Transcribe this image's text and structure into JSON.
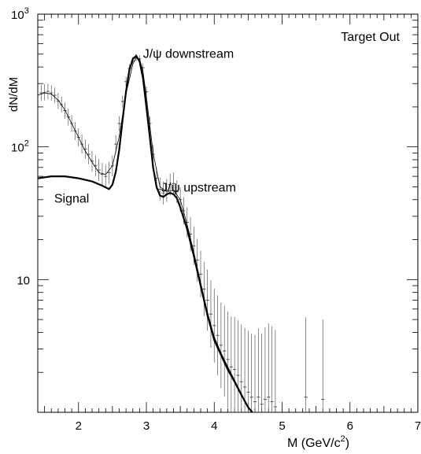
{
  "chart_data": {
    "type": "line",
    "title": "",
    "xlabel": "M (GeV/c",
    "xlabel_sup": "2",
    "xlabel_close": ")",
    "ylabel": "dN/dM",
    "xlim": [
      1.4,
      7.0
    ],
    "ylim": [
      1,
      1000
    ],
    "yscale": "log",
    "grid": false,
    "x_ticks": [
      {
        "value": 2,
        "label": "2"
      },
      {
        "value": 3,
        "label": "3"
      },
      {
        "value": 4,
        "label": "4"
      },
      {
        "value": 5,
        "label": "5"
      },
      {
        "value": 6,
        "label": "6"
      },
      {
        "value": 7,
        "label": "7"
      }
    ],
    "y_ticks": [
      {
        "value": 10,
        "label": "10"
      },
      {
        "value": 100,
        "label": "10",
        "sup": "2"
      },
      {
        "value": 1000,
        "label": "10",
        "sup": "3"
      }
    ],
    "annotations": [
      {
        "text": "Target Out",
        "x": 6.3,
        "y": 630
      },
      {
        "text": "J/ψ downstream",
        "x": 3.62,
        "y": 470
      },
      {
        "text": "J/ψ upstream",
        "x": 3.77,
        "y": 46
      },
      {
        "text": "Signal",
        "x": 1.9,
        "y": 38
      }
    ],
    "series": [
      {
        "kind": "signal_curve",
        "x": [
          1.4,
          1.6,
          1.8,
          2.0,
          2.2,
          2.35,
          2.45,
          2.5,
          2.55,
          2.6,
          2.65,
          2.7,
          2.75,
          2.8,
          2.85,
          2.9,
          2.95,
          3.0,
          3.05,
          3.1,
          3.15,
          3.2,
          3.25,
          3.3,
          3.35,
          3.4,
          3.45,
          3.5,
          3.6,
          3.7,
          3.8,
          3.9,
          4.0,
          4.1,
          4.2,
          4.3,
          4.4,
          4.5,
          4.56
        ],
        "y": [
          58,
          60,
          60,
          58,
          55,
          51,
          48,
          52,
          65,
          95,
          160,
          260,
          380,
          460,
          485,
          440,
          330,
          200,
          120,
          70,
          50,
          43,
          42,
          44,
          45,
          44,
          41,
          35,
          24,
          15,
          9,
          5.4,
          3.5,
          2.7,
          2.1,
          1.7,
          1.35,
          1.09,
          1.0
        ]
      },
      {
        "kind": "background_fit",
        "x": [
          1.4,
          1.5,
          1.6,
          1.7,
          1.8,
          1.9,
          2.0,
          2.1,
          2.2,
          2.3,
          2.4,
          2.5,
          2.6,
          2.7,
          2.8,
          2.85,
          2.9,
          2.95,
          3.0,
          3.1,
          3.2,
          3.3,
          3.4,
          3.5,
          3.6,
          3.7,
          3.8,
          3.9,
          4.0,
          4.1,
          4.2,
          4.3,
          4.4,
          4.5,
          4.56
        ],
        "y": [
          245,
          255,
          250,
          225,
          190,
          150,
          118,
          93,
          77,
          64,
          62,
          72,
          120,
          250,
          420,
          470,
          460,
          370,
          240,
          90,
          50,
          46,
          47,
          40,
          26,
          16,
          9.5,
          5.7,
          3.7,
          2.8,
          2.2,
          1.75,
          1.38,
          1.1,
          1.0
        ]
      },
      {
        "kind": "data_points",
        "x": [
          1.45,
          1.5,
          1.55,
          1.6,
          1.65,
          1.7,
          1.75,
          1.8,
          1.85,
          1.9,
          1.95,
          2.0,
          2.05,
          2.1,
          2.15,
          2.2,
          2.25,
          2.3,
          2.35,
          2.4,
          2.45,
          2.5,
          2.55,
          2.6,
          2.65,
          2.7,
          2.75,
          2.8,
          2.85,
          2.9,
          2.95,
          3.0,
          3.05,
          3.1,
          3.15,
          3.2,
          3.25,
          3.3,
          3.35,
          3.4,
          3.45,
          3.5,
          3.55,
          3.6,
          3.65,
          3.7,
          3.75,
          3.8,
          3.85,
          3.9,
          3.95,
          4.0,
          4.05,
          4.1,
          4.15,
          4.2,
          4.25,
          4.3,
          4.35,
          4.4,
          4.45,
          4.5,
          4.55,
          4.6,
          4.65,
          4.7,
          4.75,
          4.8,
          4.85,
          4.9,
          5.35,
          5.6
        ],
        "y": [
          255,
          258,
          262,
          255,
          245,
          222,
          208,
          188,
          168,
          150,
          132,
          118,
          105,
          96,
          88,
          78,
          72,
          67,
          62,
          60,
          64,
          72,
          105,
          150,
          220,
          310,
          390,
          445,
          470,
          460,
          395,
          260,
          150,
          88,
          58,
          48,
          45,
          47,
          52,
          53,
          46,
          40,
          33,
          27,
          22,
          18,
          14,
          11,
          8.5,
          7.0,
          5.5,
          4.5,
          3.8,
          3.2,
          2.9,
          2.5,
          2.2,
          2.1,
          1.9,
          1.7,
          1.55,
          1.42,
          1.3,
          1.2,
          1.3,
          1.15,
          1.25,
          1.3,
          1.2,
          1.1,
          1.3,
          1.25
        ],
        "yerr_ratio": [
          1.15,
          1.15,
          1.14,
          1.14,
          1.14,
          1.15,
          1.15,
          1.15,
          1.16,
          1.16,
          1.17,
          1.17,
          1.18,
          1.18,
          1.19,
          1.2,
          1.2,
          1.21,
          1.22,
          1.22,
          1.21,
          1.2,
          1.17,
          1.14,
          1.11,
          1.09,
          1.08,
          1.07,
          1.07,
          1.07,
          1.08,
          1.1,
          1.13,
          1.17,
          1.2,
          1.22,
          1.22,
          1.22,
          1.21,
          1.21,
          1.22,
          1.24,
          1.27,
          1.3,
          1.35,
          1.4,
          1.45,
          1.5,
          1.6,
          1.7,
          1.8,
          1.9,
          2.0,
          2.1,
          2.2,
          2.3,
          2.4,
          2.5,
          2.6,
          2.7,
          2.8,
          2.9,
          3.0,
          3.2,
          3.3,
          3.4,
          3.5,
          3.6,
          3.7,
          3.8,
          4.0,
          4.0
        ]
      }
    ]
  }
}
